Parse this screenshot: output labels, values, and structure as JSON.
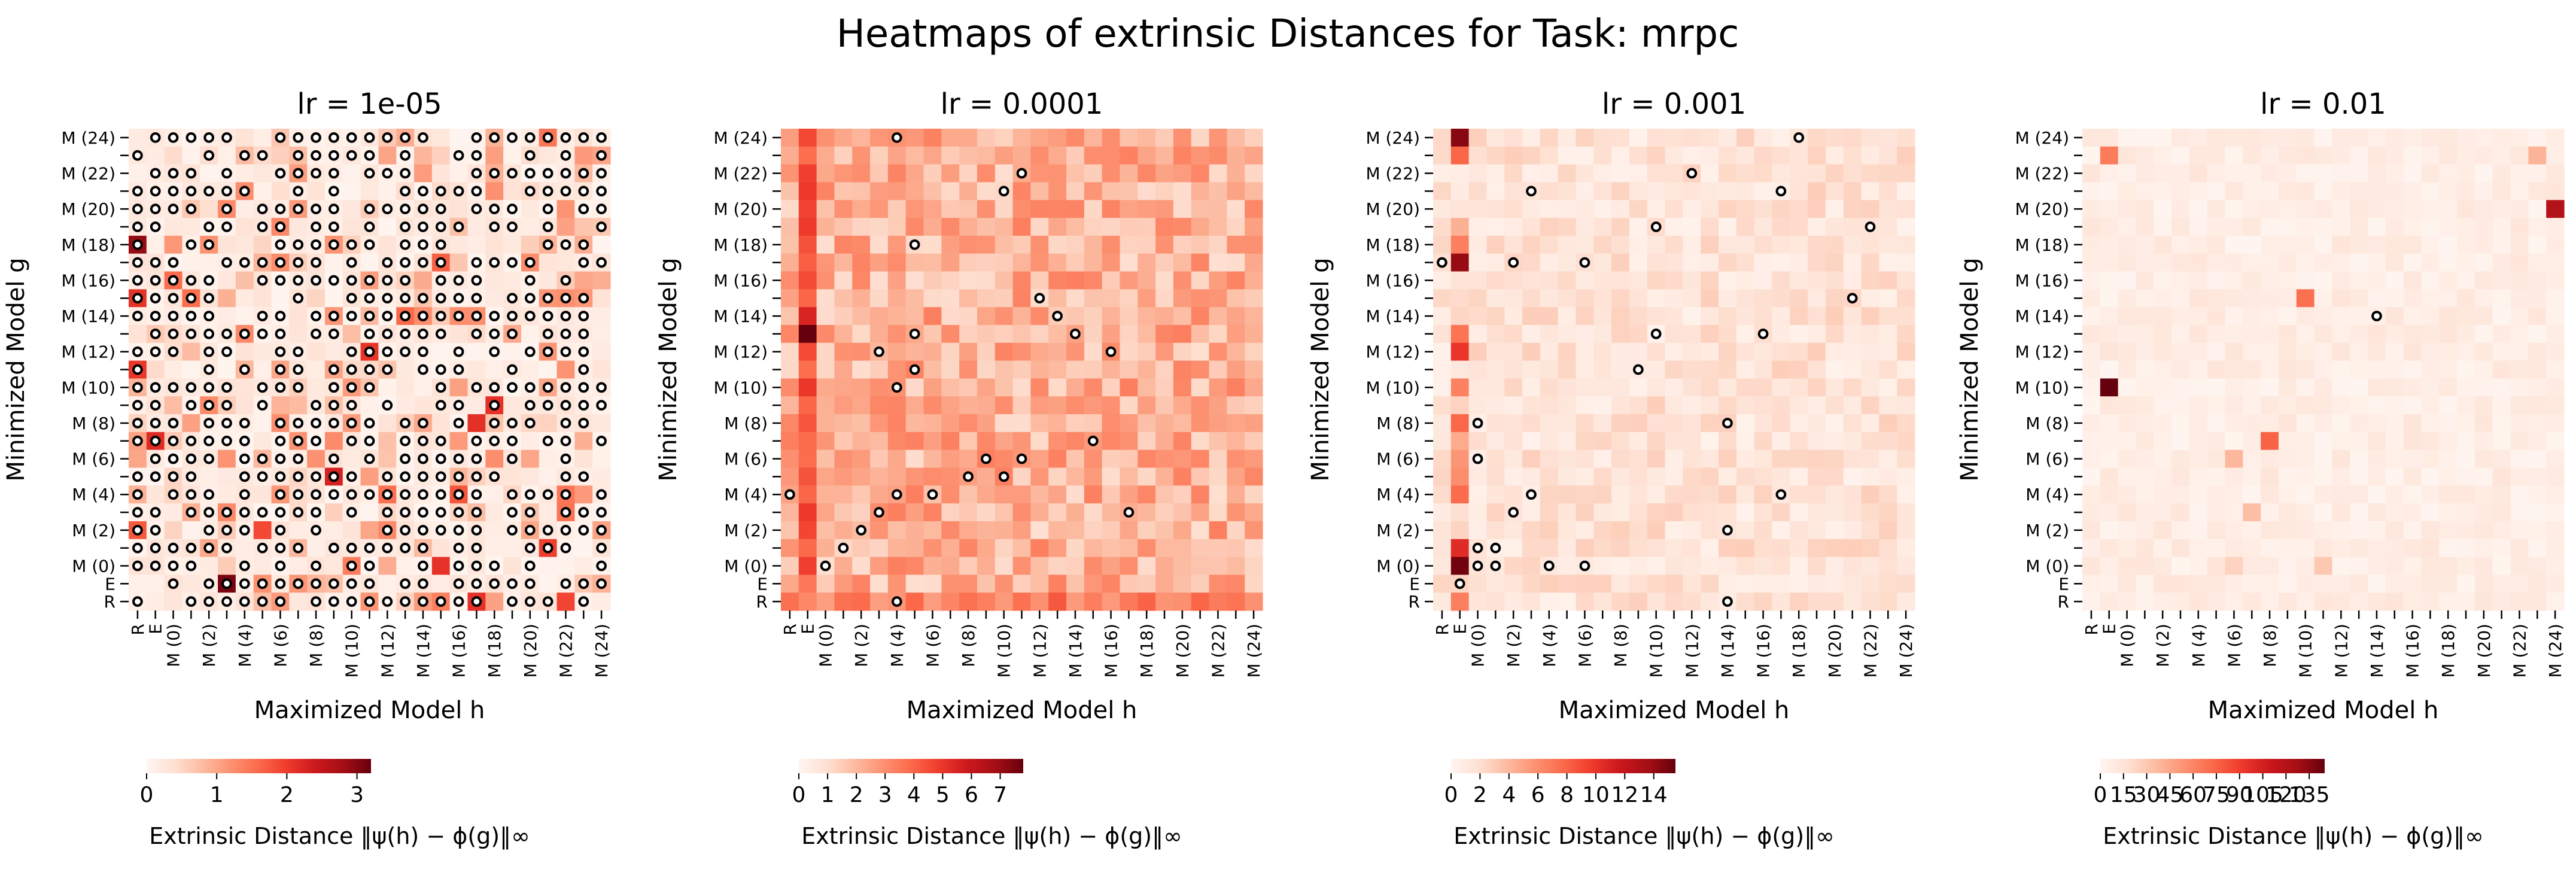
{
  "figure_title": "Heatmaps of extrinsic Distances for Task: mrpc",
  "colormap": "Reds",
  "colors": {
    "low": "#fff5f0",
    "high": "#67000d",
    "marker_edge": "#000000"
  },
  "chart_data": [
    {
      "type": "heatmap",
      "title": "lr = 1e-05",
      "xlabel": "Maximized Model h",
      "ylabel": "Minimized Model g",
      "x_tick_labels": [
        "R",
        "E",
        "M (0)",
        "",
        "M (2)",
        "",
        "M (4)",
        "",
        "M (6)",
        "",
        "M (8)",
        "",
        "M (10)",
        "",
        "M (12)",
        "",
        "M (14)",
        "",
        "M (16)",
        "",
        "M (18)",
        "",
        "M (20)",
        "",
        "M (22)",
        "",
        "M (24)"
      ],
      "y_tick_labels_top_to_bottom": [
        "M (24)",
        "",
        "M (22)",
        "",
        "M (20)",
        "",
        "M (18)",
        "",
        "M (16)",
        "",
        "M (14)",
        "",
        "M (12)",
        "",
        "M (10)",
        "",
        "M (8)",
        "",
        "M (6)",
        "",
        "M (4)",
        "",
        "M (2)",
        "",
        "M (0)",
        "E",
        "R"
      ],
      "colorbar_label": "Extrinsic Distance ‖ψ(h) − ϕ(g)‖∞",
      "colorbar_ticks": [
        "0",
        "1",
        "2",
        "3"
      ],
      "vmax": 3.2,
      "value_range": [
        0,
        3.1
      ],
      "marker_density": 0.72,
      "circle_markers_note": "circles mark most cells"
    },
    {
      "type": "heatmap",
      "title": "lr = 0.0001",
      "xlabel": "Maximized Model h",
      "ylabel": "Minimized Model g",
      "x_tick_labels": [
        "R",
        "E",
        "M (0)",
        "",
        "M (2)",
        "",
        "M (4)",
        "",
        "M (6)",
        "",
        "M (8)",
        "",
        "M (10)",
        "",
        "M (12)",
        "",
        "M (14)",
        "",
        "M (16)",
        "",
        "M (18)",
        "",
        "M (20)",
        "",
        "M (22)",
        "",
        "M (24)"
      ],
      "y_tick_labels_top_to_bottom": [
        "M (24)",
        "",
        "M (22)",
        "",
        "M (20)",
        "",
        "M (18)",
        "",
        "M (16)",
        "",
        "M (14)",
        "",
        "M (12)",
        "",
        "M (10)",
        "",
        "M (8)",
        "",
        "M (6)",
        "",
        "M (4)",
        "",
        "M (2)",
        "",
        "M (0)",
        "E",
        "R"
      ],
      "colorbar_label": "Extrinsic Distance ‖ψ(h) − ϕ(g)‖∞",
      "colorbar_ticks": [
        "0",
        "1",
        "2",
        "3",
        "4",
        "5",
        "6",
        "7"
      ],
      "vmax": 7.8,
      "value_range": [
        0.3,
        7.8
      ],
      "marked_cells_row_col": [
        [
          0,
          6
        ],
        [
          2,
          13
        ],
        [
          3,
          12
        ],
        [
          6,
          7
        ],
        [
          9,
          14
        ],
        [
          10,
          15
        ],
        [
          11,
          16
        ],
        [
          12,
          5
        ],
        [
          11,
          7
        ],
        [
          12,
          18
        ],
        [
          13,
          7
        ],
        [
          14,
          6
        ],
        [
          17,
          17
        ],
        [
          18,
          11
        ],
        [
          18,
          13
        ],
        [
          19,
          10
        ],
        [
          19,
          12
        ],
        [
          20,
          0
        ],
        [
          20,
          6
        ],
        [
          20,
          8
        ],
        [
          21,
          5
        ],
        [
          21,
          19
        ],
        [
          22,
          4
        ],
        [
          24,
          2
        ],
        [
          23,
          3
        ],
        [
          26,
          6
        ]
      ]
    },
    {
      "type": "heatmap",
      "title": "lr = 0.001",
      "xlabel": "Maximized Model h",
      "ylabel": "Minimized Model g",
      "x_tick_labels": [
        "R",
        "E",
        "M (0)",
        "",
        "M (2)",
        "",
        "M (4)",
        "",
        "M (6)",
        "",
        "M (8)",
        "",
        "M (10)",
        "",
        "M (12)",
        "",
        "M (14)",
        "",
        "M (16)",
        "",
        "M (18)",
        "",
        "M (20)",
        "",
        "M (22)",
        "",
        "M (24)"
      ],
      "y_tick_labels_top_to_bottom": [
        "M (24)",
        "",
        "M (22)",
        "",
        "M (20)",
        "",
        "M (18)",
        "",
        "M (16)",
        "",
        "M (14)",
        "",
        "M (12)",
        "",
        "M (10)",
        "",
        "M (8)",
        "",
        "M (6)",
        "",
        "M (4)",
        "",
        "M (2)",
        "",
        "M (0)",
        "E",
        "R"
      ],
      "colorbar_label": "Extrinsic Distance ‖ψ(h) − ϕ(g)‖∞",
      "colorbar_ticks": [
        "0",
        "2",
        "4",
        "6",
        "8",
        "10",
        "12",
        "14"
      ],
      "vmax": 15.5,
      "value_range": [
        0.2,
        15.5
      ],
      "marked_cells_row_col": [
        [
          0,
          20
        ],
        [
          2,
          14
        ],
        [
          3,
          5
        ],
        [
          3,
          19
        ],
        [
          5,
          12
        ],
        [
          5,
          24
        ],
        [
          7,
          0
        ],
        [
          7,
          4
        ],
        [
          7,
          8
        ],
        [
          9,
          23
        ],
        [
          11,
          12
        ],
        [
          11,
          18
        ],
        [
          13,
          11
        ],
        [
          16,
          2
        ],
        [
          16,
          16
        ],
        [
          18,
          2
        ],
        [
          20,
          5
        ],
        [
          20,
          19
        ],
        [
          21,
          4
        ],
        [
          22,
          16
        ],
        [
          23,
          2
        ],
        [
          23,
          3
        ],
        [
          24,
          2
        ],
        [
          24,
          3
        ],
        [
          24,
          6
        ],
        [
          24,
          8
        ],
        [
          25,
          1
        ],
        [
          26,
          16
        ]
      ]
    },
    {
      "type": "heatmap",
      "title": "lr = 0.01",
      "xlabel": "Maximized Model h",
      "ylabel": "Minimized Model g",
      "x_tick_labels": [
        "R",
        "E",
        "M (0)",
        "",
        "M (2)",
        "",
        "M (4)",
        "",
        "M (6)",
        "",
        "M (8)",
        "",
        "M (10)",
        "",
        "M (12)",
        "",
        "M (14)",
        "",
        "M (16)",
        "",
        "M (18)",
        "",
        "M (20)",
        "",
        "M (22)",
        "",
        "M (24)"
      ],
      "y_tick_labels_top_to_bottom": [
        "M (24)",
        "",
        "M (22)",
        "",
        "M (20)",
        "",
        "M (18)",
        "",
        "M (16)",
        "",
        "M (14)",
        "",
        "M (12)",
        "",
        "M (10)",
        "",
        "M (8)",
        "",
        "M (6)",
        "",
        "M (4)",
        "",
        "M (2)",
        "",
        "M (0)",
        "E",
        "R"
      ],
      "colorbar_label": "Extrinsic Distance ‖ψ(h) − ϕ(g)‖∞",
      "colorbar_ticks": [
        "0",
        "15",
        "30",
        "45",
        "60",
        "75",
        "90",
        "105",
        "120",
        "135"
      ],
      "vmax": 145,
      "value_range": [
        0,
        145
      ],
      "marked_cells_row_col": [
        [
          10,
          16
        ]
      ]
    }
  ]
}
